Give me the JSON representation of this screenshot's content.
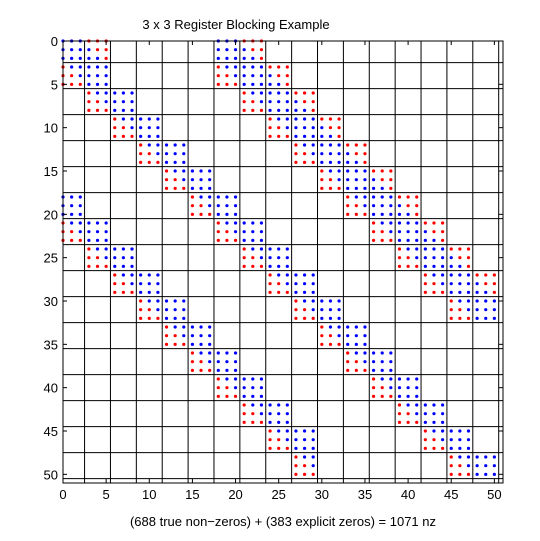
{
  "chart_data": {
    "type": "scatter",
    "title": "3 x 3 Register Blocking Example",
    "xlabel": "(688 true non−zeros) + (383 explicit zeros) = 1071 nz",
    "ylabel": "",
    "xlim": [
      0,
      51
    ],
    "ylim": [
      0,
      51
    ],
    "y_reversed": true,
    "grid": false,
    "block_size": 3,
    "block_lines": "3x3 block boundary grid",
    "x_ticks": [
      0,
      5,
      10,
      15,
      20,
      25,
      30,
      35,
      40,
      45,
      50
    ],
    "y_ticks": [
      0,
      5,
      10,
      15,
      20,
      25,
      30,
      35,
      40,
      45,
      50
    ],
    "series": [
      {
        "name": "true non-zeros",
        "color": "#0000ff",
        "count": 688
      },
      {
        "name": "explicit zeros",
        "color": "#ff0000",
        "count": 383
      }
    ],
    "block_diagonals": [
      {
        "blocks": [
          [
            0,
            0
          ],
          [
            0,
            1
          ],
          [
            1,
            0
          ],
          [
            1,
            1
          ],
          [
            2,
            1
          ],
          [
            2,
            2
          ],
          [
            3,
            2
          ],
          [
            3,
            3
          ],
          [
            4,
            3
          ],
          [
            4,
            4
          ],
          [
            5,
            4
          ],
          [
            5,
            5
          ],
          [
            6,
            5
          ],
          [
            6,
            6
          ],
          [
            7,
            6
          ],
          [
            7,
            7
          ],
          [
            8,
            7
          ],
          [
            8,
            8
          ],
          [
            9,
            8
          ],
          [
            9,
            9
          ],
          [
            10,
            9
          ],
          [
            10,
            10
          ],
          [
            11,
            10
          ],
          [
            11,
            11
          ],
          [
            12,
            11
          ],
          [
            12,
            12
          ],
          [
            13,
            12
          ],
          [
            13,
            13
          ],
          [
            14,
            13
          ],
          [
            14,
            14
          ],
          [
            15,
            14
          ],
          [
            15,
            15
          ],
          [
            16,
            15
          ],
          [
            16,
            16
          ]
        ]
      },
      {
        "blocks": [
          [
            0,
            6
          ],
          [
            0,
            7
          ],
          [
            1,
            6
          ],
          [
            1,
            7
          ],
          [
            1,
            8
          ],
          [
            2,
            7
          ],
          [
            2,
            8
          ],
          [
            2,
            9
          ],
          [
            3,
            8
          ],
          [
            3,
            9
          ],
          [
            3,
            10
          ],
          [
            4,
            9
          ],
          [
            4,
            10
          ],
          [
            4,
            11
          ],
          [
            5,
            10
          ],
          [
            5,
            11
          ],
          [
            5,
            12
          ],
          [
            6,
            11
          ],
          [
            6,
            12
          ],
          [
            6,
            13
          ],
          [
            7,
            12
          ],
          [
            7,
            13
          ],
          [
            7,
            14
          ],
          [
            8,
            13
          ],
          [
            8,
            14
          ],
          [
            8,
            15
          ],
          [
            9,
            14
          ],
          [
            9,
            15
          ],
          [
            9,
            16
          ],
          [
            10,
            15
          ],
          [
            10,
            16
          ]
        ]
      },
      {
        "blocks": [
          [
            6,
            0
          ],
          [
            7,
            0
          ],
          [
            7,
            1
          ],
          [
            8,
            1
          ],
          [
            8,
            2
          ],
          [
            9,
            2
          ],
          [
            9,
            3
          ],
          [
            10,
            3
          ],
          [
            10,
            4
          ],
          [
            11,
            4
          ],
          [
            11,
            5
          ],
          [
            12,
            5
          ],
          [
            12,
            6
          ],
          [
            13,
            6
          ],
          [
            13,
            7
          ],
          [
            14,
            7
          ],
          [
            14,
            8
          ],
          [
            15,
            8
          ],
          [
            15,
            9
          ],
          [
            16,
            9
          ]
        ]
      }
    ]
  }
}
